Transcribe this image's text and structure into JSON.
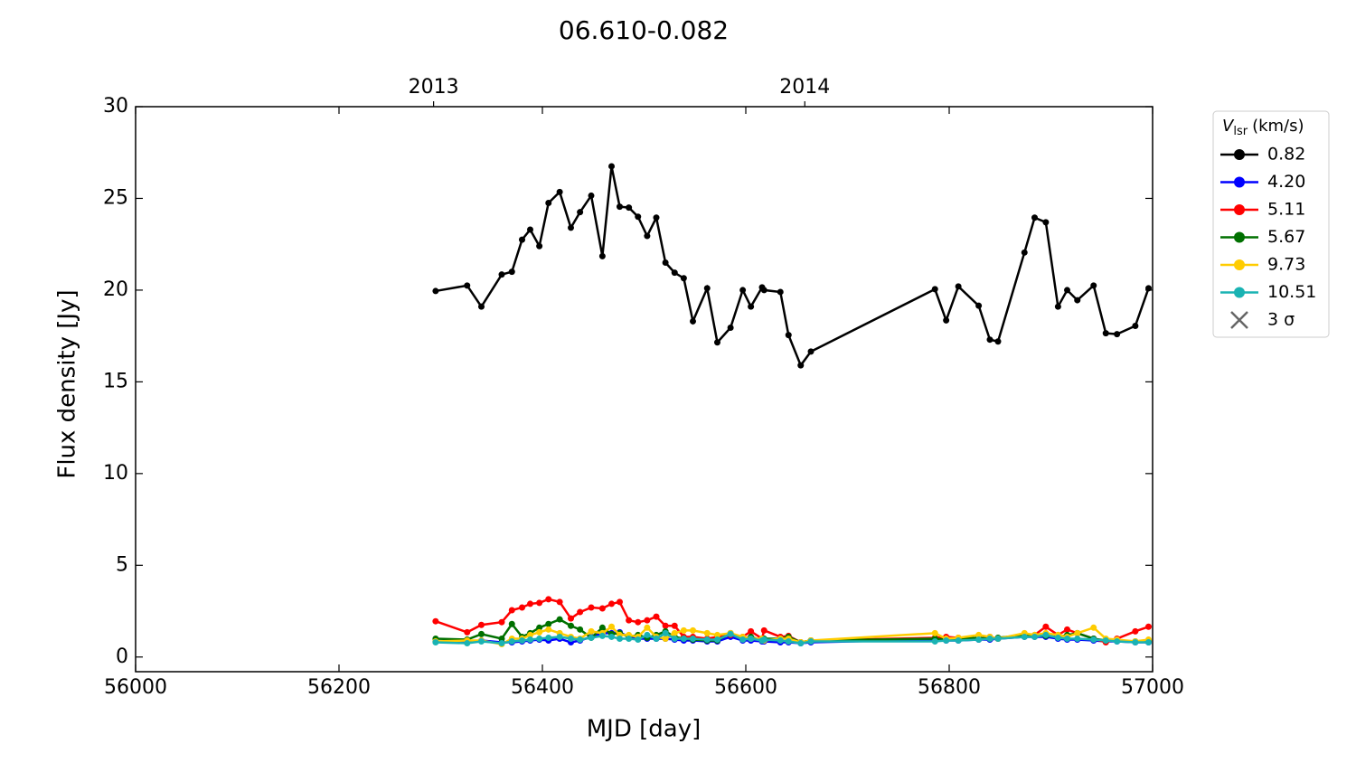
{
  "chart_data": {
    "type": "line",
    "title": "06.610-0.082",
    "xlabel": "MJD [day]",
    "ylabel": "Flux density [Jy]",
    "xlim": [
      56000,
      57000
    ],
    "xticks": [
      56000,
      56200,
      56400,
      56600,
      56800,
      57000
    ],
    "x2ticks": [
      {
        "value": 56293,
        "label": "2013"
      },
      {
        "value": 56658,
        "label": "2014"
      }
    ],
    "ylim": [
      -0.8,
      30
    ],
    "yticks": [
      0,
      5,
      10,
      15,
      20,
      25,
      30
    ],
    "legend_title": {
      "symbol": "V",
      "subscript": "lsr",
      "unit": "(km/s)"
    },
    "legend_extra": "3 σ",
    "x": [
      56295,
      56326,
      56340,
      56360,
      56370,
      56380,
      56388,
      56397,
      56406,
      56417,
      56428,
      56437,
      56448,
      56459,
      56468,
      56476,
      56485,
      56494,
      56503,
      56512,
      56521,
      56530,
      56539,
      56548,
      56562,
      56572,
      56585,
      56597,
      56605,
      56616,
      56618,
      56634,
      56642,
      56654,
      56664,
      56786,
      56797,
      56809,
      56829,
      56840,
      56848,
      56874,
      56884,
      56895,
      56907,
      56916,
      56926,
      56942,
      56954,
      56965,
      56983,
      56996
    ],
    "series": [
      {
        "name": "0.82",
        "color": "#000000",
        "values": [
          19.95,
          20.25,
          19.1,
          20.85,
          21.0,
          22.75,
          23.3,
          22.4,
          24.75,
          25.35,
          23.4,
          24.25,
          25.15,
          21.85,
          26.75,
          24.55,
          24.5,
          24.0,
          22.95,
          23.95,
          21.5,
          20.95,
          20.65,
          18.3,
          20.1,
          17.15,
          17.95,
          20.0,
          19.1,
          20.15,
          20.0,
          19.9,
          17.55,
          15.9,
          16.65,
          20.05,
          18.35,
          20.2,
          19.15,
          17.3,
          17.2,
          22.05,
          23.95,
          23.7,
          19.1,
          20.0,
          19.45,
          20.25,
          17.65,
          17.6,
          18.05,
          20.1
        ]
      },
      {
        "name": "4.20",
        "color": "#0000ff",
        "values": [
          0.85,
          0.8,
          0.9,
          0.8,
          0.8,
          0.85,
          0.9,
          0.95,
          0.9,
          1.0,
          0.8,
          0.9,
          1.1,
          1.3,
          1.3,
          1.35,
          1.1,
          1.0,
          1.0,
          1.0,
          1.0,
          0.95,
          0.9,
          0.9,
          0.85,
          0.85,
          1.1,
          0.9,
          0.9,
          0.85,
          0.85,
          0.8,
          0.8,
          0.75,
          0.8,
          0.95,
          0.9,
          0.9,
          0.95,
          0.95,
          1.0,
          1.1,
          1.1,
          1.1,
          1.0,
          0.95,
          0.95,
          0.9,
          0.85,
          0.85,
          0.8,
          0.8
        ]
      },
      {
        "name": "5.11",
        "color": "#ff0000",
        "values": [
          1.95,
          1.35,
          1.75,
          1.9,
          2.55,
          2.7,
          2.9,
          2.95,
          3.15,
          3.0,
          2.1,
          2.45,
          2.7,
          2.65,
          2.9,
          3.0,
          2.0,
          1.9,
          2.0,
          2.2,
          1.7,
          1.7,
          1.1,
          1.1,
          1.0,
          1.1,
          1.2,
          1.1,
          1.4,
          1.0,
          1.45,
          1.1,
          1.15,
          0.8,
          0.9,
          1.05,
          1.1,
          1.05,
          1.0,
          1.1,
          1.0,
          1.2,
          1.2,
          1.65,
          1.2,
          1.5,
          1.3,
          1.0,
          0.8,
          1.0,
          1.4,
          1.65
        ]
      },
      {
        "name": "5.67",
        "color": "#007000",
        "values": [
          1.0,
          0.95,
          1.25,
          1.0,
          1.8,
          1.1,
          1.3,
          1.6,
          1.8,
          2.05,
          1.7,
          1.5,
          1.05,
          1.6,
          1.25,
          1.3,
          1.1,
          1.2,
          1.05,
          1.2,
          1.4,
          1.1,
          1.0,
          0.95,
          0.9,
          0.9,
          1.3,
          1.0,
          1.1,
          0.9,
          1.0,
          1.0,
          1.1,
          0.8,
          0.9,
          1.0,
          0.95,
          1.0,
          1.05,
          1.0,
          1.05,
          1.2,
          1.15,
          1.15,
          1.1,
          1.2,
          1.3,
          1.0,
          0.9,
          0.9,
          0.85,
          0.9
        ]
      },
      {
        "name": "9.73",
        "color": "#ffcc00",
        "values": [
          0.85,
          0.9,
          0.9,
          0.7,
          1.0,
          1.0,
          1.2,
          1.35,
          1.5,
          1.3,
          1.1,
          1.0,
          1.4,
          1.3,
          1.65,
          1.2,
          1.2,
          1.1,
          1.6,
          1.1,
          1.0,
          1.3,
          1.45,
          1.45,
          1.3,
          1.2,
          1.3,
          1.1,
          1.0,
          1.0,
          0.9,
          1.0,
          1.0,
          0.8,
          0.9,
          1.3,
          1.0,
          1.05,
          1.2,
          1.1,
          1.0,
          1.3,
          1.2,
          1.3,
          1.2,
          1.1,
          1.3,
          1.6,
          1.0,
          0.95,
          0.85,
          0.95
        ]
      },
      {
        "name": "10.51",
        "color": "#1ab3b3",
        "values": [
          0.8,
          0.75,
          0.85,
          0.75,
          0.85,
          0.9,
          0.95,
          1.0,
          1.05,
          1.1,
          1.0,
          0.95,
          1.05,
          1.15,
          1.1,
          1.0,
          1.0,
          0.95,
          1.2,
          1.0,
          1.3,
          1.0,
          1.0,
          1.0,
          0.95,
          0.95,
          1.25,
          0.95,
          1.0,
          0.9,
          0.95,
          0.9,
          0.85,
          0.75,
          0.85,
          0.85,
          0.9,
          0.9,
          0.95,
          1.0,
          1.0,
          1.1,
          1.1,
          1.2,
          1.05,
          1.0,
          1.0,
          0.95,
          0.9,
          0.85,
          0.8,
          0.8
        ]
      }
    ]
  }
}
